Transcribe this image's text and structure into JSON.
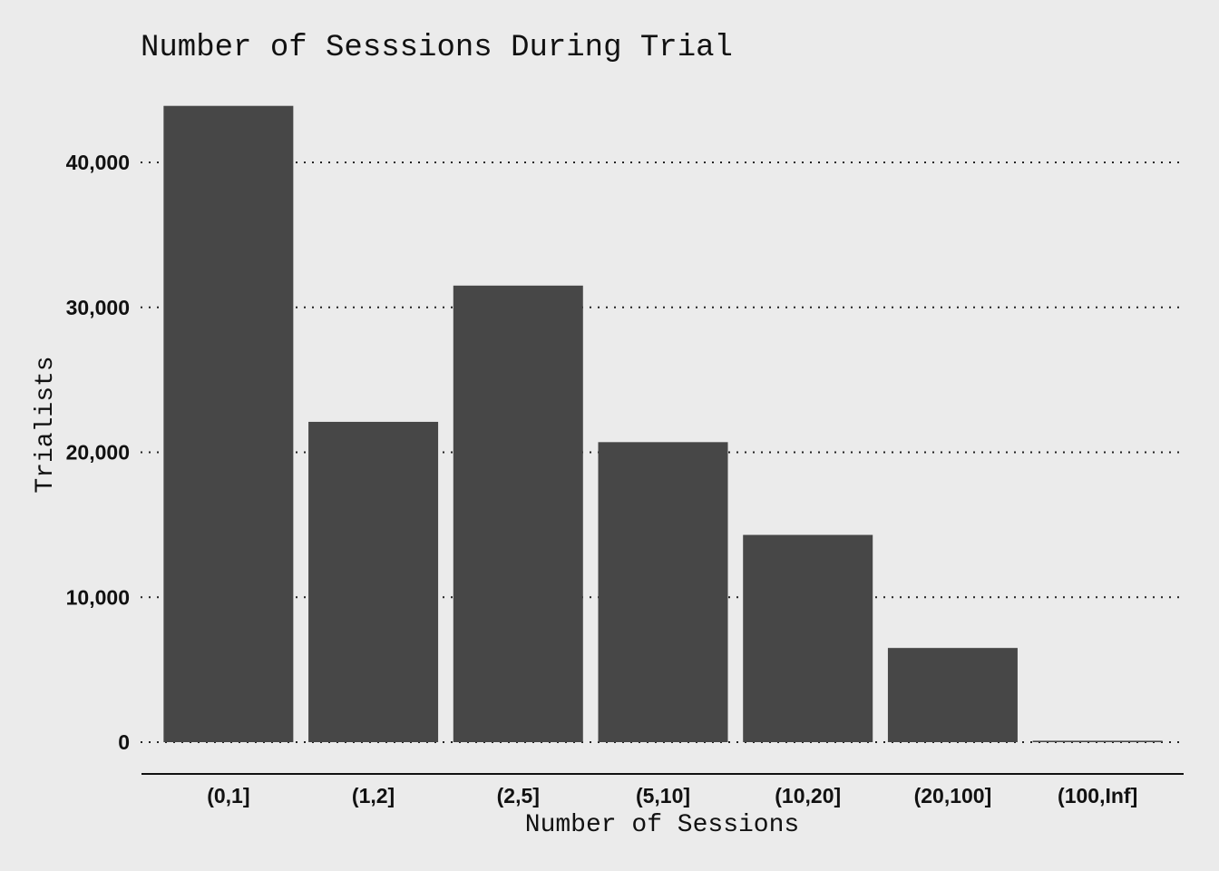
{
  "chart_data": {
    "type": "bar",
    "title": "Number of Sesssions During Trial",
    "xlabel": "Number of Sessions",
    "ylabel": "Trialists",
    "categories": [
      "(0,1]",
      "(1,2]",
      "(2,5]",
      "(5,10]",
      "(10,20]",
      "(20,100]",
      "(100,Inf]"
    ],
    "values": [
      43900,
      22100,
      31500,
      20700,
      14300,
      6500,
      100
    ],
    "ylim": [
      0,
      45000
    ],
    "yticks": [
      0,
      10000,
      20000,
      30000,
      40000
    ],
    "ytick_labels": [
      "0",
      "10,000",
      "20,000",
      "30,000",
      "40,000"
    ],
    "grid": "horizontal dotted",
    "bar_color": "#474747",
    "background_color": "#ebebeb"
  }
}
